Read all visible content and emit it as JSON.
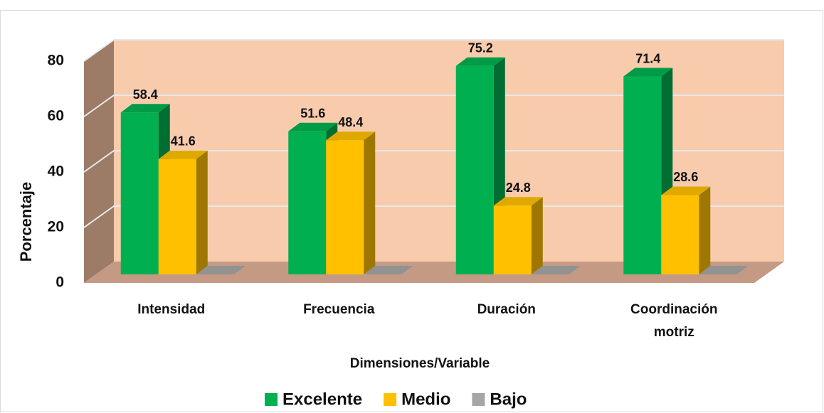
{
  "chart_data": {
    "type": "bar3d",
    "categories": [
      "Intensidad",
      "Frecuencia",
      "Duración",
      "Coordinación motriz"
    ],
    "series": [
      {
        "name": "Excelente",
        "color": "#00b050",
        "values": [
          58.4,
          51.6,
          75.2,
          71.4
        ]
      },
      {
        "name": "Medio",
        "color": "#ffc000",
        "values": [
          41.6,
          48.4,
          24.8,
          28.6
        ]
      },
      {
        "name": "Bajo",
        "color": "#a6a6a6",
        "values": [
          0,
          0,
          0,
          0
        ]
      }
    ],
    "data_labels": [
      true,
      true,
      false
    ],
    "ylim": [
      0,
      80
    ],
    "yticks": [
      0,
      20,
      40,
      60,
      80
    ],
    "grid": true,
    "x_label": "Dimensiones/Variable",
    "y_label": "Porcentaje",
    "legend": "bottom"
  }
}
